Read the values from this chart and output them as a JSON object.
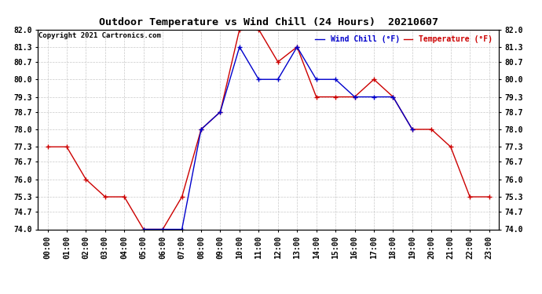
{
  "title": "Outdoor Temperature vs Wind Chill (24 Hours)  20210607",
  "copyright": "Copyright 2021 Cartronics.com",
  "legend_wind_chill": "Wind Chill (°F)",
  "legend_temperature": "Temperature (°F)",
  "x_labels": [
    "00:00",
    "01:00",
    "02:00",
    "03:00",
    "04:00",
    "05:00",
    "06:00",
    "07:00",
    "08:00",
    "09:00",
    "10:00",
    "11:00",
    "12:00",
    "13:00",
    "14:00",
    "15:00",
    "16:00",
    "17:00",
    "18:00",
    "19:00",
    "20:00",
    "21:00",
    "22:00",
    "23:00"
  ],
  "temperature_x": [
    0,
    1,
    2,
    3,
    4,
    5,
    6,
    7,
    8,
    9,
    10,
    11,
    12,
    13,
    14,
    15,
    16,
    17,
    18,
    19,
    20,
    21,
    22,
    23
  ],
  "temperature_y": [
    77.3,
    77.3,
    76.0,
    75.3,
    75.3,
    74.0,
    74.0,
    75.3,
    78.0,
    78.7,
    82.0,
    82.0,
    80.7,
    81.3,
    79.3,
    79.3,
    79.3,
    80.0,
    79.3,
    78.0,
    78.0,
    77.3,
    75.3,
    75.3
  ],
  "wind_chill_x": [
    5,
    6,
    7,
    8,
    9,
    10,
    11,
    12,
    13,
    14,
    15,
    16,
    17,
    18,
    19
  ],
  "wind_chill_y": [
    74.0,
    74.0,
    74.0,
    78.0,
    78.7,
    81.3,
    80.0,
    80.0,
    81.3,
    80.0,
    80.0,
    79.3,
    79.3,
    79.3,
    78.0
  ],
  "ylim": [
    74.0,
    82.0
  ],
  "yticks": [
    74.0,
    74.7,
    75.3,
    76.0,
    76.7,
    77.3,
    78.0,
    78.7,
    79.3,
    80.0,
    80.7,
    81.3,
    82.0
  ],
  "temp_color": "#cc0000",
  "wind_color": "#0000cc",
  "grid_color": "#bbbbbb",
  "bg_color": "#ffffff",
  "title_fontsize": 9.5,
  "tick_fontsize": 7,
  "copyright_fontsize": 6.5,
  "legend_fontsize": 7
}
